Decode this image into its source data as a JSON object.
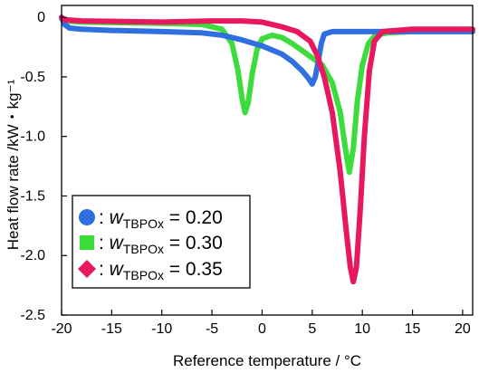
{
  "chart_data": {
    "type": "line",
    "title": "",
    "xlabel": "Reference temperature / °C",
    "ylabel": "Heat flow rate /kW・kg⁻¹",
    "xlim": [
      -20,
      21
    ],
    "ylim": [
      -2.5,
      0.1
    ],
    "x_ticks": [
      -20,
      -15,
      -10,
      -5,
      0,
      5,
      10,
      15,
      20
    ],
    "x_tick_labels": [
      "-20",
      "-15",
      "-10",
      "-5",
      "0",
      "5",
      "10",
      "15",
      "20"
    ],
    "y_ticks": [
      0,
      -0.5,
      -1.0,
      -1.5,
      -2.0,
      -2.5
    ],
    "y_tick_labels": [
      "0",
      "-0.5",
      "-1.0",
      "-1.5",
      "-2.0",
      "-2.5"
    ],
    "grid": false,
    "legend_position": "bottom-left",
    "series": [
      {
        "label": {
          "prefix": ": ",
          "symbol": "w",
          "subscript": "TBPOx",
          "value": " = 0.20"
        },
        "marker": "circle",
        "color": "#2f6fe0",
        "points": [
          [
            -20.0,
            0.0
          ],
          [
            -19.7,
            -0.06
          ],
          [
            -19.2,
            -0.09
          ],
          [
            -18,
            -0.1
          ],
          [
            -15,
            -0.11
          ],
          [
            -10,
            -0.12
          ],
          [
            -6,
            -0.13
          ],
          [
            -4,
            -0.15
          ],
          [
            -2,
            -0.19
          ],
          [
            0,
            -0.24
          ],
          [
            2,
            -0.31
          ],
          [
            3,
            -0.37
          ],
          [
            4,
            -0.45
          ],
          [
            4.6,
            -0.51
          ],
          [
            5.0,
            -0.56
          ],
          [
            5.3,
            -0.5
          ],
          [
            5.6,
            -0.37
          ],
          [
            5.9,
            -0.22
          ],
          [
            6.2,
            -0.14
          ],
          [
            7,
            -0.12
          ],
          [
            10,
            -0.12
          ],
          [
            15,
            -0.12
          ],
          [
            21,
            -0.12
          ]
        ]
      },
      {
        "label": {
          "prefix": ": ",
          "symbol": "w",
          "subscript": "TBPOx",
          "value": " = 0.30"
        },
        "marker": "square",
        "color": "#3ddc3d",
        "points": [
          [
            -20.0,
            -0.01
          ],
          [
            -19.6,
            -0.03
          ],
          [
            -18,
            -0.04
          ],
          [
            -10,
            -0.05
          ],
          [
            -6,
            -0.06
          ],
          [
            -4,
            -0.1
          ],
          [
            -3,
            -0.22
          ],
          [
            -2.4,
            -0.45
          ],
          [
            -2.0,
            -0.68
          ],
          [
            -1.7,
            -0.8
          ],
          [
            -1.4,
            -0.72
          ],
          [
            -1.0,
            -0.48
          ],
          [
            -0.5,
            -0.27
          ],
          [
            0,
            -0.18
          ],
          [
            1,
            -0.15
          ],
          [
            2,
            -0.17
          ],
          [
            3,
            -0.22
          ],
          [
            4,
            -0.28
          ],
          [
            5,
            -0.34
          ],
          [
            6,
            -0.4
          ],
          [
            7,
            -0.55
          ],
          [
            7.8,
            -0.8
          ],
          [
            8.3,
            -1.1
          ],
          [
            8.7,
            -1.3
          ],
          [
            9.1,
            -1.1
          ],
          [
            9.5,
            -0.7
          ],
          [
            10,
            -0.4
          ],
          [
            10.6,
            -0.22
          ],
          [
            11.3,
            -0.15
          ],
          [
            12.5,
            -0.13
          ],
          [
            15,
            -0.12
          ],
          [
            21,
            -0.12
          ]
        ]
      },
      {
        "label": {
          "prefix": ": ",
          "symbol": "w",
          "subscript": "TBPOx",
          "value": " = 0.35"
        },
        "marker": "diamond",
        "color": "#e8185f",
        "points": [
          [
            -20.0,
            0.0
          ],
          [
            -19.7,
            -0.02
          ],
          [
            -18,
            -0.03
          ],
          [
            -10,
            -0.04
          ],
          [
            -5,
            -0.03
          ],
          [
            -2,
            -0.03
          ],
          [
            0,
            -0.04
          ],
          [
            2,
            -0.08
          ],
          [
            3.5,
            -0.12
          ],
          [
            4.8,
            -0.2
          ],
          [
            5.5,
            -0.32
          ],
          [
            6.2,
            -0.5
          ],
          [
            7,
            -0.8
          ],
          [
            7.8,
            -1.3
          ],
          [
            8.4,
            -1.8
          ],
          [
            8.8,
            -2.1
          ],
          [
            9.1,
            -2.22
          ],
          [
            9.4,
            -2.1
          ],
          [
            9.8,
            -1.6
          ],
          [
            10.2,
            -1.0
          ],
          [
            10.7,
            -0.45
          ],
          [
            11.2,
            -0.2
          ],
          [
            12,
            -0.12
          ],
          [
            15,
            -0.1
          ],
          [
            21,
            -0.1
          ]
        ]
      }
    ]
  }
}
